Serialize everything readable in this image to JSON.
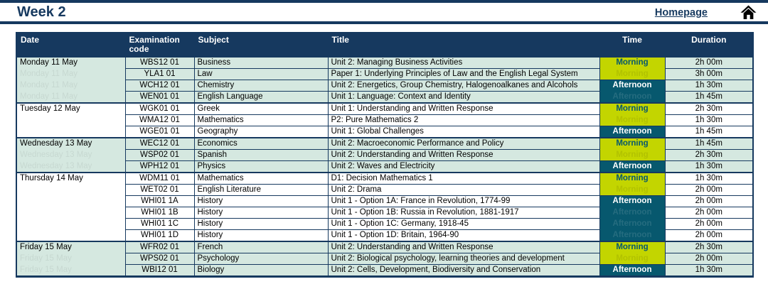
{
  "header": {
    "title": "Week 2",
    "homepage_label": "Homepage"
  },
  "colors": {
    "navy": "#16395f",
    "shade": "#d5e8e0",
    "morning": "#c3d500",
    "teal": "#07586e"
  },
  "table": {
    "columns": [
      {
        "key": "date",
        "label": "Date"
      },
      {
        "key": "code",
        "label": "Examination code"
      },
      {
        "key": "subject",
        "label": "Subject"
      },
      {
        "key": "title",
        "label": "Title"
      },
      {
        "key": "time",
        "label": "Time"
      },
      {
        "key": "duration",
        "label": "Duration"
      }
    ],
    "days": [
      {
        "date": "Monday 11 May",
        "shaded": true,
        "times": [
          {
            "label": "Morning",
            "rows": 2
          },
          {
            "label": "Afternoon",
            "rows": 2
          }
        ],
        "exams": [
          {
            "code": "WBS12 01",
            "subject": "Business",
            "title": "Unit 2: Managing Business Activities",
            "duration": "2h 00m"
          },
          {
            "code": "YLA1 01",
            "subject": "Law",
            "title": "Paper 1: Underlying Principles of Law and the English Legal System",
            "duration": "3h 00m"
          },
          {
            "code": "WCH12 01",
            "subject": "Chemistry",
            "title": "Unit 2: Energetics, Group Chemistry, Halogenoalkanes and Alcohols",
            "duration": "1h 30m"
          },
          {
            "code": "WEN01 01",
            "subject": "English Language",
            "title": "Unit 1: Language: Context and Identity",
            "duration": "1h 45m"
          }
        ]
      },
      {
        "date": "Tuesday 12 May",
        "shaded": false,
        "times": [
          {
            "label": "Morning",
            "rows": 2
          },
          {
            "label": "Afternoon",
            "rows": 1
          }
        ],
        "exams": [
          {
            "code": "WGK01 01",
            "subject": "Greek",
            "title": "Unit 1: Understanding and Written Response",
            "duration": "2h 30m"
          },
          {
            "code": "WMA12 01",
            "subject": "Mathematics",
            "title": "P2: Pure Mathematics 2",
            "duration": "1h 30m"
          },
          {
            "code": "WGE01 01",
            "subject": "Geography",
            "title": "Unit 1: Global Challenges",
            "duration": "1h 45m"
          }
        ]
      },
      {
        "date": "Wednesday 13 May",
        "shaded": true,
        "times": [
          {
            "label": "Morning",
            "rows": 2
          },
          {
            "label": "Afternoon",
            "rows": 1
          }
        ],
        "exams": [
          {
            "code": "WEC12 01",
            "subject": "Economics",
            "title": "Unit 2: Macroeconomic Performance and Policy",
            "duration": "1h 45m"
          },
          {
            "code": "WSP02 01",
            "subject": "Spanish",
            "title": "Unit 2: Understanding and Written Response",
            "duration": "2h 30m"
          },
          {
            "code": "WPH12 01",
            "subject": "Physics",
            "title": "Unit 2: Waves and Electricity",
            "duration": "1h 30m"
          }
        ]
      },
      {
        "date": "Thursday 14 May",
        "shaded": false,
        "times": [
          {
            "label": "Morning",
            "rows": 2
          },
          {
            "label": "Afternoon",
            "rows": 4
          }
        ],
        "exams": [
          {
            "code": "WDM11 01",
            "subject": "Mathematics",
            "title": "D1: Decision Mathematics 1",
            "duration": "1h 30m"
          },
          {
            "code": "WET02 01",
            "subject": "English Literature",
            "title": "Unit 2: Drama",
            "duration": "2h 00m"
          },
          {
            "code": "WHI01 1A",
            "subject": "History",
            "title": "Unit 1 - Option 1A: France in Revolution, 1774-99",
            "duration": "2h 00m"
          },
          {
            "code": "WHI01 1B",
            "subject": "History",
            "title": "Unit 1 - Option 1B: Russia in Revolution, 1881-1917",
            "duration": "2h 00m"
          },
          {
            "code": "WHI01 1C",
            "subject": "History",
            "title": "Unit 1 - Option 1C: Germany, 1918-45",
            "duration": "2h 00m"
          },
          {
            "code": "WHI01 1D",
            "subject": "History",
            "title": "Unit 1 - Option 1D: Britain, 1964-90",
            "duration": "2h 00m"
          }
        ]
      },
      {
        "date": "Friday 15 May",
        "shaded": true,
        "times": [
          {
            "label": "Morning",
            "rows": 2
          },
          {
            "label": "Afternoon",
            "rows": 1
          }
        ],
        "exams": [
          {
            "code": "WFR02 01",
            "subject": "French",
            "title": "Unit 2: Understanding and Written Response",
            "duration": "2h 30m"
          },
          {
            "code": "WPS02 01",
            "subject": "Psychology",
            "title": "Unit 2: Biological psychology, learning theories and development",
            "duration": "2h 00m"
          },
          {
            "code": "WBI12 01",
            "subject": "Biology",
            "title": "Unit 2: Cells, Development, Biodiversity and Conservation",
            "duration": "1h 30m"
          }
        ]
      }
    ]
  }
}
